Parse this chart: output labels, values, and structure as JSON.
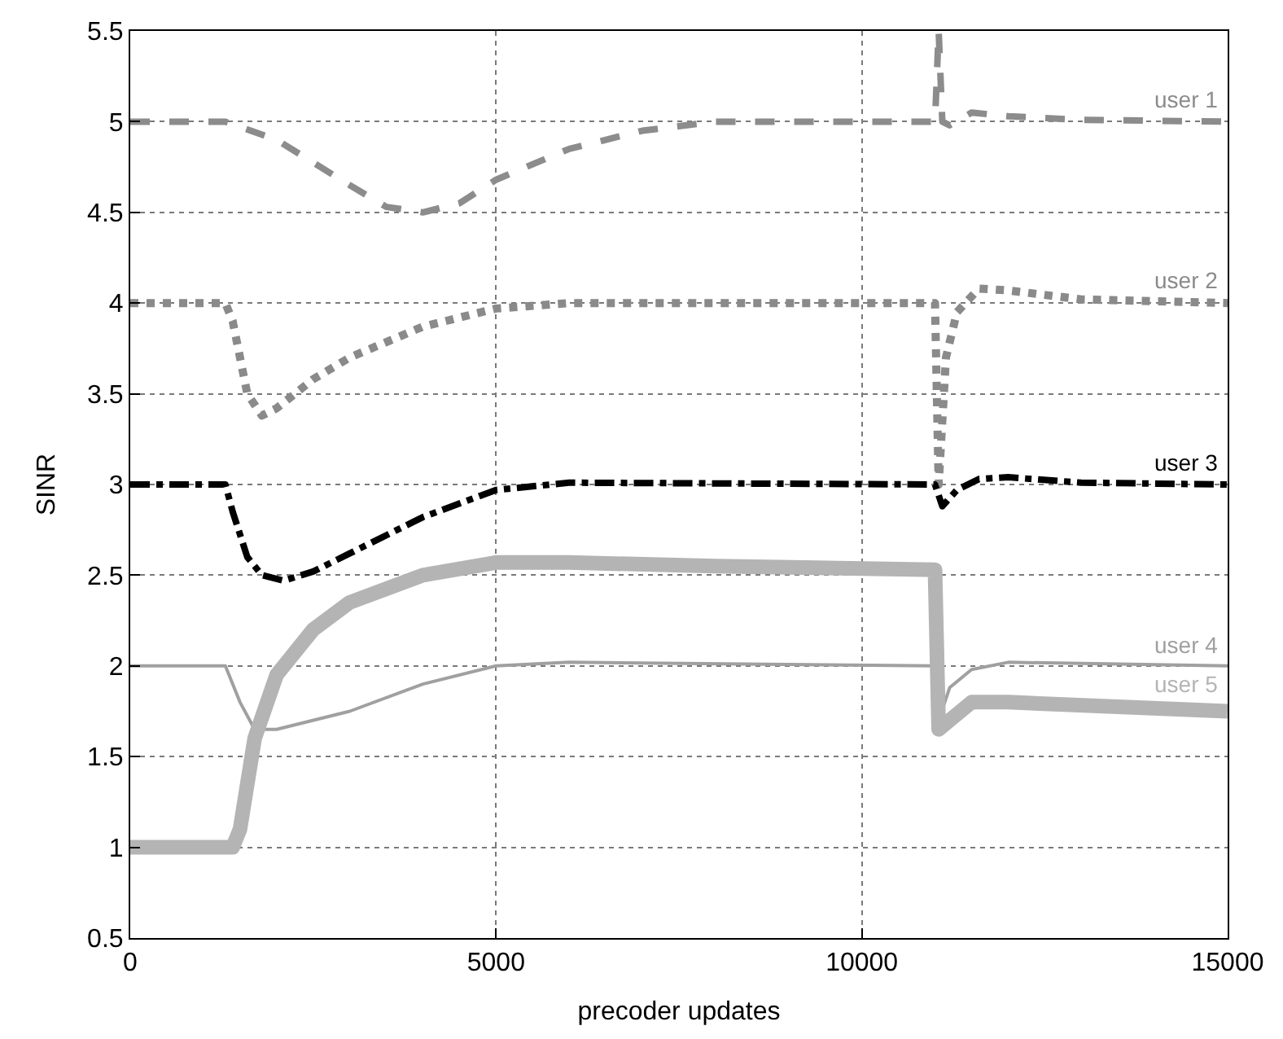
{
  "chart_data": {
    "type": "line",
    "xlabel": "precoder updates",
    "ylabel": "SINR",
    "xlim": [
      0,
      15000
    ],
    "ylim": [
      0.5,
      5.5
    ],
    "xticks": [
      0,
      5000,
      10000,
      15000
    ],
    "yticks": [
      0.5,
      1,
      1.5,
      2,
      2.5,
      3,
      3.5,
      4,
      4.5,
      5,
      5.5
    ],
    "grid": true,
    "legend": false,
    "marker": "none",
    "series": [
      {
        "name": "user 1",
        "color": "#8c8c8c",
        "line_style": "dashed",
        "x": [
          0,
          1300,
          2000,
          3000,
          3500,
          4000,
          4500,
          5000,
          6000,
          7000,
          8000,
          11000,
          11050,
          11100,
          11200,
          11500,
          12000,
          13000,
          15000
        ],
        "values": [
          5,
          5,
          4.9,
          4.65,
          4.53,
          4.5,
          4.55,
          4.68,
          4.85,
          4.95,
          5,
          5,
          5.5,
          5,
          4.98,
          5.05,
          5.03,
          5.01,
          5
        ]
      },
      {
        "name": "user 2",
        "color": "#8a8a8a",
        "line_style": "dotted",
        "x": [
          0,
          1300,
          1400,
          1600,
          1800,
          2000,
          2500,
          3000,
          4000,
          5000,
          6000,
          11000,
          11050,
          11150,
          11300,
          11600,
          12000,
          13000,
          15000
        ],
        "values": [
          4,
          4,
          3.9,
          3.5,
          3.38,
          3.42,
          3.58,
          3.7,
          3.87,
          3.97,
          4,
          4,
          3,
          3.7,
          3.95,
          4.08,
          4.07,
          4.02,
          4
        ]
      },
      {
        "name": "user 3",
        "color": "#000000",
        "line_style": "dashdot",
        "x": [
          0,
          1300,
          1400,
          1600,
          1800,
          2100,
          2500,
          3000,
          4000,
          5000,
          6000,
          11000,
          11100,
          11300,
          11600,
          12000,
          13000,
          15000
        ],
        "values": [
          3,
          3,
          2.85,
          2.6,
          2.5,
          2.47,
          2.52,
          2.62,
          2.82,
          2.97,
          3.01,
          3,
          2.88,
          2.97,
          3.03,
          3.04,
          3.01,
          3
        ]
      },
      {
        "name": "user 4",
        "color": "#a0a0a0",
        "line_style": "solid",
        "x": [
          0,
          1300,
          1500,
          1700,
          2000,
          3000,
          4000,
          5000,
          6000,
          11000,
          11050,
          11200,
          11500,
          12000,
          15000
        ],
        "values": [
          2,
          2,
          1.8,
          1.65,
          1.65,
          1.75,
          1.9,
          2,
          2.02,
          2,
          1.7,
          1.88,
          1.98,
          2.02,
          2
        ]
      },
      {
        "name": "user 5",
        "color": "#b4b4b4",
        "line_style": "solid",
        "x": [
          0,
          1400,
          1500,
          1700,
          2000,
          2500,
          3000,
          4000,
          5000,
          6000,
          8000,
          11000,
          11050,
          11200,
          11500,
          12000,
          15000
        ],
        "values": [
          1,
          1,
          1.1,
          1.6,
          1.95,
          2.2,
          2.35,
          2.5,
          2.57,
          2.57,
          2.55,
          2.53,
          1.65,
          1.7,
          1.8,
          1.8,
          1.75
        ]
      }
    ]
  }
}
